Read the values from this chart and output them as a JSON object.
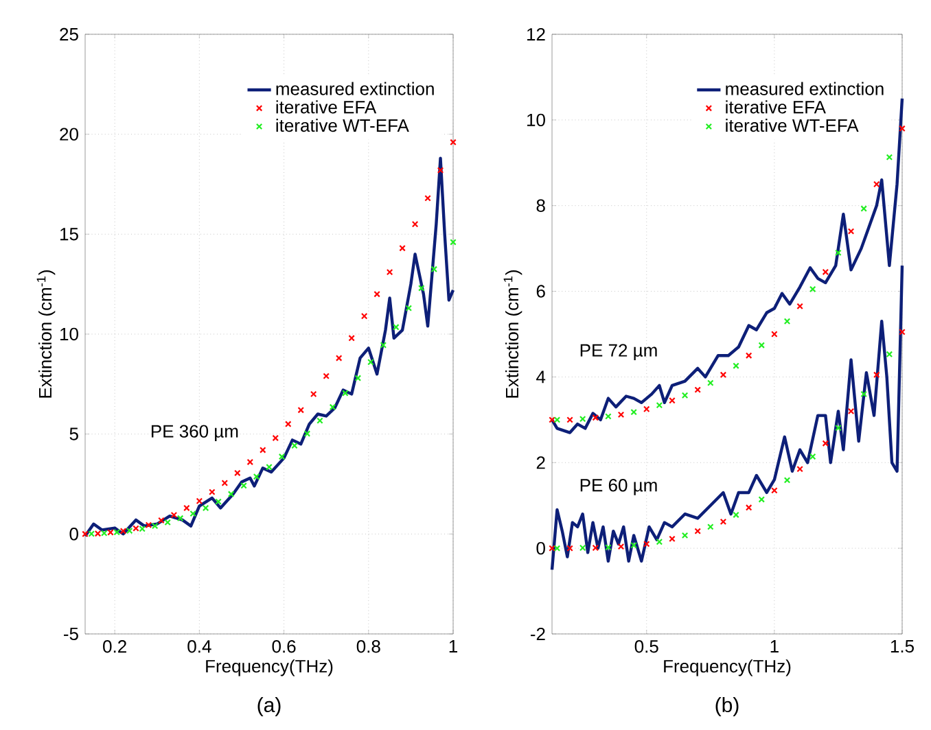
{
  "chart_data": [
    {
      "type": "line",
      "xlabel": "Frequency(THz)",
      "ylabel": "Extinction (cm$^{-1}$)",
      "xlim": [
        0.13,
        1
      ],
      "ylim": [
        -5,
        25
      ],
      "xticks": [
        0.2,
        0.4,
        0.6,
        0.8,
        1
      ],
      "yticks": [
        -5,
        0,
        5,
        10,
        15,
        20,
        25
      ],
      "grid": true,
      "legend": "top right",
      "annotations": [
        "PE 360 µm",
        "(a)"
      ],
      "series": [
        {
          "name": "measured extinction",
          "color": "#0d1f78",
          "x": [
            0.13,
            0.15,
            0.17,
            0.2,
            0.22,
            0.25,
            0.27,
            0.3,
            0.33,
            0.36,
            0.38,
            0.4,
            0.43,
            0.45,
            0.48,
            0.5,
            0.52,
            0.53,
            0.55,
            0.57,
            0.6,
            0.62,
            0.64,
            0.66,
            0.68,
            0.7,
            0.72,
            0.74,
            0.76,
            0.78,
            0.8,
            0.82,
            0.84,
            0.85,
            0.86,
            0.88,
            0.9,
            0.91,
            0.93,
            0.94,
            0.96,
            0.97,
            0.98,
            0.99,
            1.0
          ],
          "values": [
            -0.1,
            0.5,
            0.2,
            0.3,
            0.0,
            0.7,
            0.4,
            0.5,
            0.9,
            0.7,
            0.4,
            1.4,
            1.8,
            1.3,
            2.0,
            2.6,
            2.8,
            2.4,
            3.3,
            3.1,
            3.8,
            4.7,
            4.5,
            5.5,
            6.0,
            5.9,
            6.3,
            7.2,
            7.0,
            8.8,
            9.3,
            8.0,
            10.2,
            11.8,
            9.8,
            10.2,
            12.5,
            14.0,
            12.0,
            10.4,
            15.5,
            18.8,
            15.0,
            11.7,
            12.2
          ]
        },
        {
          "name": "iterative EFA",
          "type": "scatter",
          "marker": "cross",
          "color": "#ff0000",
          "x": [
            0.13,
            0.16,
            0.19,
            0.22,
            0.25,
            0.28,
            0.31,
            0.34,
            0.37,
            0.4,
            0.43,
            0.46,
            0.49,
            0.52,
            0.55,
            0.58,
            0.61,
            0.64,
            0.67,
            0.7,
            0.73,
            0.76,
            0.79,
            0.82,
            0.85,
            0.88,
            0.91,
            0.94,
            0.97,
            1.0
          ],
          "values": [
            0,
            0.02,
            0.08,
            0.15,
            0.28,
            0.45,
            0.68,
            0.95,
            1.3,
            1.65,
            2.1,
            2.55,
            3.05,
            3.6,
            4.2,
            4.8,
            5.5,
            6.2,
            7.0,
            7.9,
            8.8,
            9.8,
            10.9,
            12.0,
            13.1,
            14.3,
            15.5,
            16.8,
            18.2,
            19.6
          ]
        },
        {
          "name": "iterative WT-EFA",
          "type": "scatter",
          "marker": "cross",
          "color": "#22ee22",
          "x": [
            0.145,
            0.175,
            0.205,
            0.235,
            0.265,
            0.295,
            0.325,
            0.355,
            0.385,
            0.415,
            0.445,
            0.475,
            0.505,
            0.535,
            0.565,
            0.595,
            0.625,
            0.655,
            0.685,
            0.715,
            0.745,
            0.775,
            0.805,
            0.835,
            0.865,
            0.895,
            0.925,
            0.955,
            1.0
          ],
          "values": [
            0.01,
            0.04,
            0.09,
            0.16,
            0.26,
            0.4,
            0.58,
            0.79,
            1.02,
            1.3,
            1.62,
            2.0,
            2.42,
            2.87,
            3.35,
            3.87,
            4.42,
            5.02,
            5.67,
            6.35,
            7.05,
            7.8,
            8.6,
            9.45,
            10.35,
            11.3,
            12.3,
            13.25,
            14.6
          ]
        }
      ]
    },
    {
      "type": "line",
      "xlabel": "Frequency(THz)",
      "ylabel": "Extinction (cm$^{-1}$)",
      "xlim": [
        0.13,
        1.5
      ],
      "ylim": [
        -2,
        12
      ],
      "xticks": [
        0.5,
        1,
        1.5
      ],
      "yticks": [
        -2,
        0,
        2,
        4,
        6,
        8,
        10,
        12
      ],
      "grid": true,
      "legend": "top right",
      "annotations": [
        "PE 72 µm",
        "PE 60 µm",
        "(b)"
      ],
      "series": [
        {
          "name": "measured extinction",
          "color": "#0d1f78",
          "x": [
            0.13,
            0.15,
            0.2,
            0.23,
            0.26,
            0.29,
            0.32,
            0.35,
            0.38,
            0.42,
            0.45,
            0.48,
            0.52,
            0.55,
            0.57,
            0.6,
            0.65,
            0.7,
            0.73,
            0.78,
            0.82,
            0.86,
            0.9,
            0.93,
            0.97,
            1.0,
            1.03,
            1.06,
            1.1,
            1.14,
            1.17,
            1.2,
            1.24,
            1.27,
            1.3,
            1.34,
            1.37,
            1.4,
            1.42,
            1.45,
            1.48,
            1.5
          ],
          "values": [
            3.0,
            2.8,
            2.7,
            2.9,
            2.8,
            3.15,
            3.0,
            3.5,
            3.3,
            3.55,
            3.5,
            3.4,
            3.6,
            3.8,
            3.4,
            3.8,
            3.9,
            4.2,
            4.0,
            4.5,
            4.5,
            4.7,
            5.2,
            5.1,
            5.5,
            5.6,
            5.95,
            5.7,
            6.1,
            6.55,
            6.3,
            6.2,
            6.6,
            7.8,
            6.5,
            7.0,
            7.5,
            8.0,
            8.6,
            6.6,
            8.5,
            10.5
          ]
        },
        {
          "name": "iterative EFA",
          "type": "scatter",
          "marker": "cross",
          "color": "#ff0000",
          "x": [
            0.13,
            0.2,
            0.3,
            0.4,
            0.5,
            0.6,
            0.7,
            0.8,
            0.9,
            1.0,
            1.1,
            1.2,
            1.3,
            1.4,
            1.5
          ],
          "values": [
            3.0,
            3.0,
            3.05,
            3.12,
            3.25,
            3.45,
            3.7,
            4.05,
            4.5,
            5.0,
            5.65,
            6.45,
            7.4,
            8.5,
            9.8
          ]
        },
        {
          "name": "iterative WT-EFA",
          "type": "scatter",
          "marker": "cross",
          "color": "#22ee22",
          "x": [
            0.15,
            0.25,
            0.35,
            0.45,
            0.55,
            0.65,
            0.75,
            0.85,
            0.95,
            1.05,
            1.15,
            1.25,
            1.35,
            1.45
          ],
          "values": [
            3.0,
            3.02,
            3.08,
            3.18,
            3.34,
            3.57,
            3.86,
            4.26,
            4.74,
            5.3,
            6.05,
            6.9,
            7.93,
            9.13
          ]
        },
        {
          "color": "#0d1f78",
          "x": [
            0.13,
            0.15,
            0.17,
            0.19,
            0.21,
            0.23,
            0.25,
            0.27,
            0.29,
            0.31,
            0.33,
            0.35,
            0.37,
            0.39,
            0.41,
            0.43,
            0.45,
            0.48,
            0.51,
            0.54,
            0.57,
            0.6,
            0.65,
            0.7,
            0.75,
            0.8,
            0.83,
            0.86,
            0.9,
            0.93,
            0.97,
            1.0,
            1.04,
            1.07,
            1.1,
            1.13,
            1.17,
            1.2,
            1.22,
            1.25,
            1.27,
            1.3,
            1.33,
            1.36,
            1.39,
            1.42,
            1.44,
            1.46,
            1.48,
            1.5
          ],
          "values": [
            -0.5,
            0.9,
            0.4,
            -0.2,
            0.6,
            0.5,
            0.8,
            -0.1,
            0.6,
            0.0,
            0.5,
            -0.3,
            0.4,
            0.1,
            0.5,
            -0.3,
            0.3,
            -0.3,
            0.5,
            0.2,
            0.6,
            0.5,
            0.8,
            0.7,
            1.0,
            1.3,
            0.8,
            1.3,
            1.3,
            1.7,
            1.3,
            1.6,
            2.6,
            1.8,
            2.3,
            2.0,
            3.1,
            3.1,
            2.0,
            3.2,
            2.3,
            4.4,
            2.5,
            4.1,
            3.1,
            5.3,
            4.0,
            2.0,
            1.8,
            6.6
          ]
        },
        {
          "type": "scatter",
          "marker": "cross",
          "color": "#ff0000",
          "x": [
            0.13,
            0.2,
            0.3,
            0.4,
            0.5,
            0.6,
            0.7,
            0.8,
            0.9,
            1.0,
            1.1,
            1.2,
            1.3,
            1.4,
            1.5
          ],
          "values": [
            0,
            0,
            0.01,
            0.04,
            0.1,
            0.22,
            0.4,
            0.62,
            0.95,
            1.35,
            1.85,
            2.45,
            3.2,
            4.05,
            5.05
          ]
        },
        {
          "type": "scatter",
          "marker": "cross",
          "color": "#22ee22",
          "x": [
            0.15,
            0.25,
            0.35,
            0.45,
            0.55,
            0.65,
            0.75,
            0.85,
            0.95,
            1.05,
            1.15,
            1.25,
            1.35,
            1.45
          ],
          "values": [
            0,
            0.01,
            0.02,
            0.07,
            0.15,
            0.3,
            0.5,
            0.78,
            1.14,
            1.59,
            2.14,
            2.81,
            3.6,
            4.53
          ]
        }
      ]
    }
  ]
}
